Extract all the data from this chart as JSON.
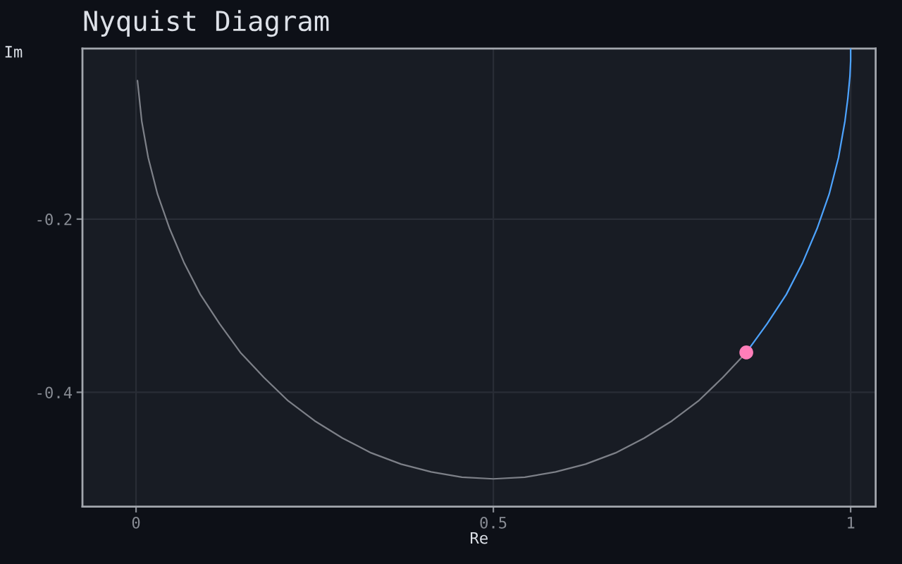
{
  "chart_data": {
    "type": "line",
    "title": "Nyquist Diagram",
    "xlabel": "Re",
    "ylabel": "Im",
    "series": [
      {
        "color": "#7d8088",
        "x": [
          0.002,
          0.008,
          0.017,
          0.03,
          0.047,
          0.067,
          0.09,
          0.117,
          0.146,
          0.179,
          0.213,
          0.25,
          0.289,
          0.329,
          0.371,
          0.413,
          0.456,
          0.5,
          0.544,
          0.587,
          0.629,
          0.671,
          0.711,
          0.75,
          0.787,
          0.821,
          0.854
        ],
        "values": [
          -0.04,
          -0.087,
          -0.129,
          -0.171,
          -0.211,
          -0.25,
          -0.287,
          -0.321,
          -0.354,
          -0.383,
          -0.41,
          -0.433,
          -0.453,
          -0.47,
          -0.483,
          -0.492,
          -0.498,
          -0.5,
          -0.498,
          -0.492,
          -0.483,
          -0.47,
          -0.453,
          -0.433,
          -0.41,
          -0.383,
          -0.354
        ]
      },
      {
        "color": "#4da3ff",
        "x": [
          0.854,
          0.883,
          0.91,
          0.933,
          0.953,
          0.97,
          0.983,
          0.992,
          0.996,
          0.999,
          1.0,
          1.0
        ],
        "values": [
          -0.354,
          -0.321,
          -0.287,
          -0.25,
          -0.211,
          -0.171,
          -0.129,
          -0.087,
          -0.061,
          -0.035,
          -0.017,
          -0.003
        ]
      },
      {
        "type": "scatter",
        "color": "#ff7eb9",
        "marker": "circle",
        "x": [
          0.854
        ],
        "values": [
          -0.354
        ]
      }
    ],
    "xlim": [
      -0.075,
      1.035
    ],
    "ylim": [
      -0.532,
      -0.003
    ],
    "xticks": [
      0,
      0.5,
      1
    ],
    "yticks": [
      -0.4,
      -0.2
    ],
    "grid": true
  }
}
